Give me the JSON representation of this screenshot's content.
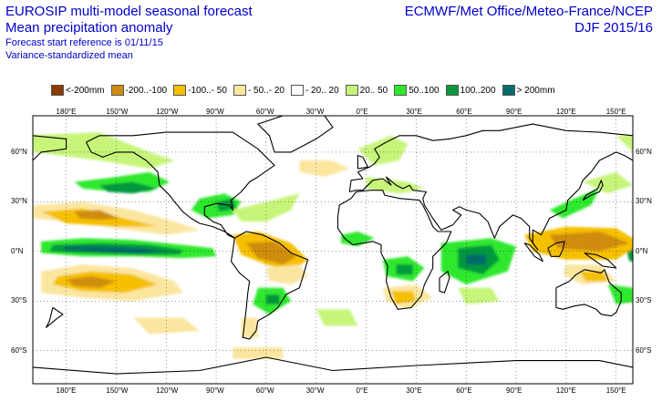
{
  "header": {
    "title_line1": "EUROSIP multi-model seasonal forecast",
    "title_line2": "Mean precipitation anomaly",
    "subtitle_line1": "Forecast start reference is 01/11/15",
    "subtitle_line2": "Variance-standardized mean",
    "provider": "ECMWF/Met Office/Meteo-France/NCEP",
    "season": "DJF 2015/16"
  },
  "legend": [
    {
      "label": "<-200mm",
      "color": "#8c3a00"
    },
    {
      "label": "-200..-100",
      "color": "#d08c10"
    },
    {
      "label": "-100..- 50",
      "color": "#f5c000"
    },
    {
      "label": "- 50..- 20",
      "color": "#fbe6a0"
    },
    {
      "label": "- 20.. 20",
      "color": "#ffffff"
    },
    {
      "label": "20.. 50",
      "color": "#c6f57a"
    },
    {
      "label": "50..100",
      "color": "#2ee82e"
    },
    {
      "label": "100..200",
      "color": "#05993c"
    },
    {
      "label": "> 200mm",
      "color": "#006b6b"
    }
  ],
  "axes": {
    "lon_labels": [
      "180°E",
      "150°W",
      "120°W",
      "90°W",
      "60°W",
      "30°W",
      "0°E",
      "30°E",
      "60°E",
      "90°E",
      "120°E",
      "150°E"
    ],
    "lat_labels": [
      "60°N",
      "30°N",
      "0°N",
      "30°S",
      "60°S"
    ]
  }
}
